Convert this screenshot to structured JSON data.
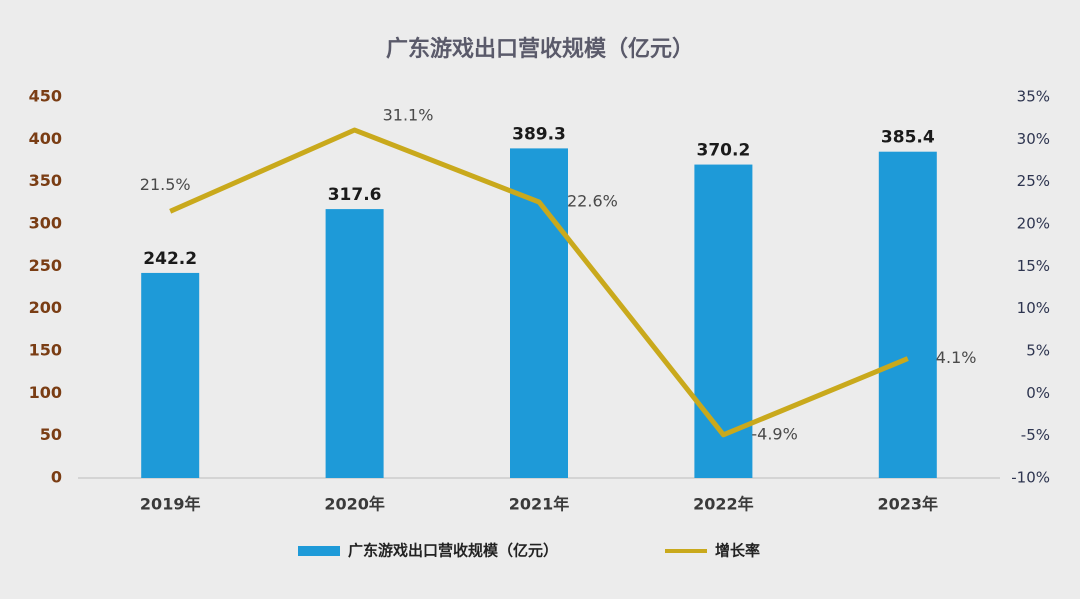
{
  "chart_data": {
    "type": "bar-line",
    "title": "广东游戏出口营收规模（亿元）",
    "categories": [
      "2019年",
      "2020年",
      "2021年",
      "2022年",
      "2023年"
    ],
    "series": [
      {
        "name": "广东游戏出口营收规模（亿元）",
        "type": "bar",
        "color": "#1e9ad8",
        "values": [
          242.2,
          317.6,
          389.3,
          370.2,
          385.4
        ]
      },
      {
        "name": "增长率",
        "type": "line",
        "axis": "y2",
        "color": "#c9a91c",
        "values": [
          21.5,
          31.1,
          22.6,
          -4.9,
          4.1
        ],
        "value_labels": [
          "21.5%",
          "31.1%",
          "22.6%",
          "-4.9%",
          "4.1%"
        ]
      }
    ],
    "ylim": [
      0,
      450
    ],
    "yticks": [
      0,
      50,
      100,
      150,
      200,
      250,
      300,
      350,
      400,
      450
    ],
    "y2lim": [
      -10,
      35
    ],
    "y2ticks": [
      {
        "value": -10,
        "label": "-10%"
      },
      {
        "value": -5,
        "label": "-5%"
      },
      {
        "value": 0,
        "label": "0%"
      },
      {
        "value": 5,
        "label": "5%"
      },
      {
        "value": 10,
        "label": "10%"
      },
      {
        "value": 15,
        "label": "15%"
      },
      {
        "value": 20,
        "label": "20%"
      },
      {
        "value": 25,
        "label": "25%"
      },
      {
        "value": 30,
        "label": "30%"
      },
      {
        "value": 35,
        "label": "35%"
      }
    ],
    "legend": "bottom"
  }
}
